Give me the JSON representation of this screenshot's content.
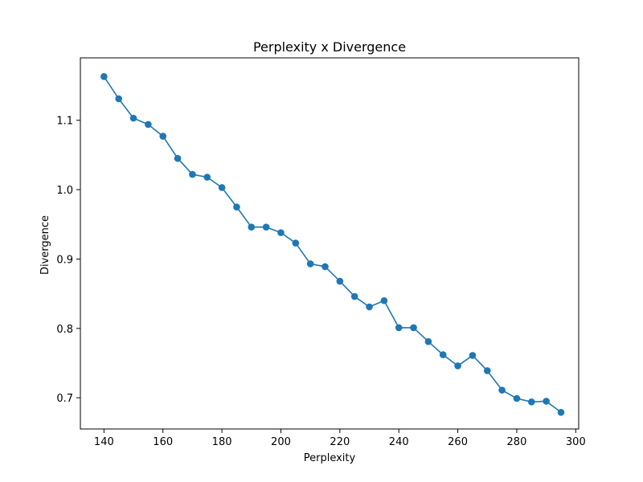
{
  "chart_data": {
    "type": "line",
    "title": "Perplexity x Divergence",
    "xlabel": "Perplexity",
    "ylabel": "Divergence",
    "xlim": [
      132,
      301
    ],
    "ylim": [
      0.655,
      1.19
    ],
    "xticks": [
      140,
      160,
      180,
      200,
      220,
      240,
      260,
      280,
      300
    ],
    "xtick_labels": [
      "140",
      "160",
      "180",
      "200",
      "220",
      "240",
      "260",
      "280",
      "300"
    ],
    "yticks": [
      0.7,
      0.8,
      0.9,
      1.0,
      1.1
    ],
    "ytick_labels": [
      "0.7",
      "0.8",
      "0.9",
      "1.0",
      "1.1"
    ],
    "grid": false,
    "markers": true,
    "series": [
      {
        "color": "#1f77b4",
        "x": [
          140,
          145,
          150,
          155,
          160,
          165,
          170,
          175,
          180,
          185,
          190,
          195,
          200,
          205,
          210,
          215,
          220,
          225,
          230,
          235,
          240,
          245,
          250,
          255,
          260,
          265,
          270,
          275,
          280,
          285,
          290,
          295
        ],
        "y": [
          1.163,
          1.131,
          1.103,
          1.094,
          1.077,
          1.045,
          1.022,
          1.018,
          1.003,
          0.975,
          0.946,
          0.946,
          0.938,
          0.923,
          0.893,
          0.889,
          0.868,
          0.846,
          0.831,
          0.84,
          0.801,
          0.801,
          0.781,
          0.762,
          0.746,
          0.761,
          0.739,
          0.711,
          0.699,
          0.694,
          0.695,
          0.679
        ]
      }
    ]
  }
}
